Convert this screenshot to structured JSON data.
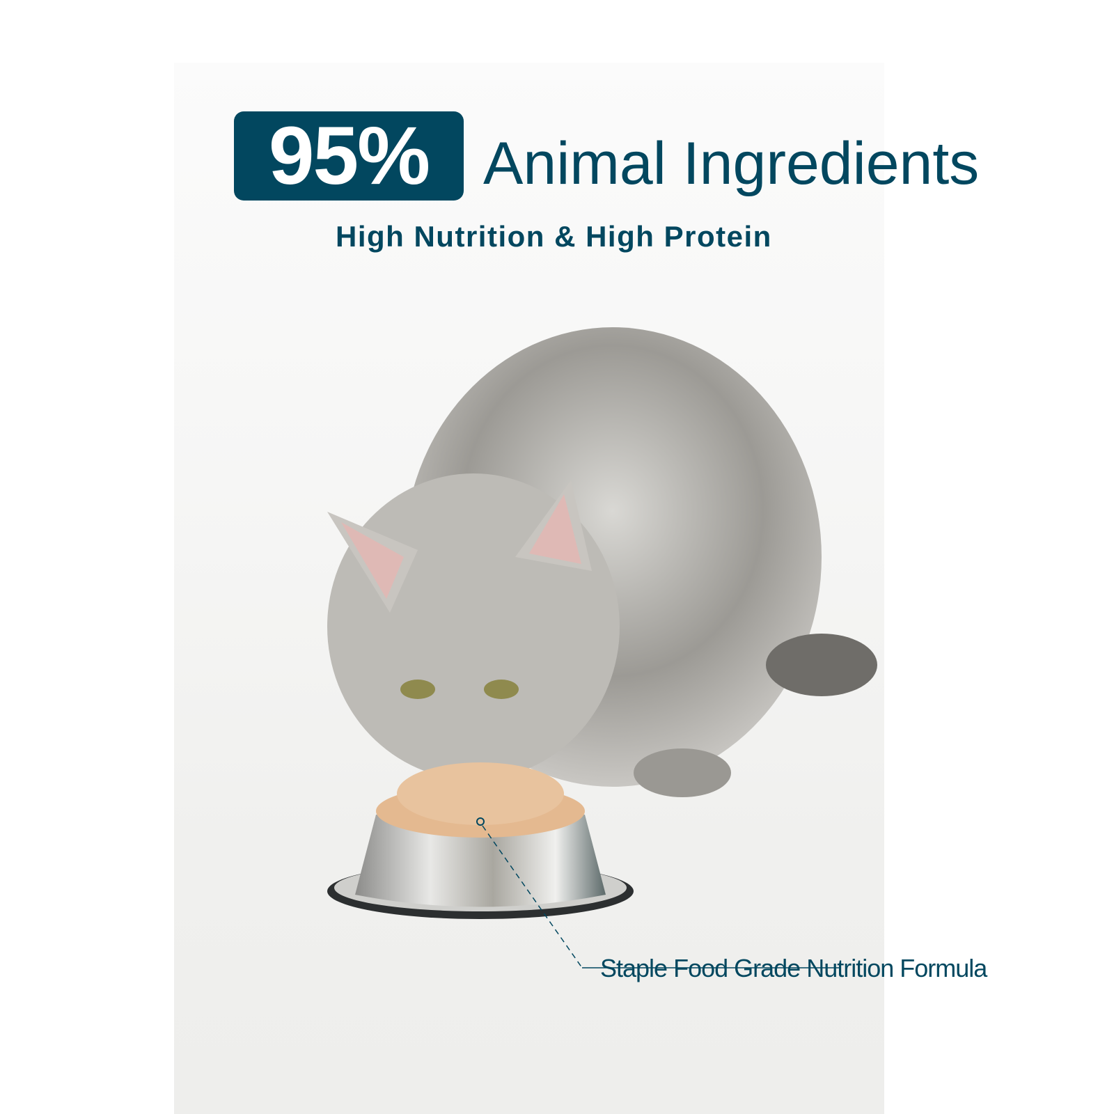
{
  "headline": {
    "badge_text": "95%",
    "title": "Animal Ingredients"
  },
  "subtitle": "High Nutrition & High Protein",
  "callout": {
    "label": "Staple Food Grade Nutrition Formula"
  },
  "colors": {
    "brand": "#02475f",
    "badge_text": "#ffffff"
  },
  "image": {
    "subject": "cat-eating-from-bowl-photo"
  }
}
